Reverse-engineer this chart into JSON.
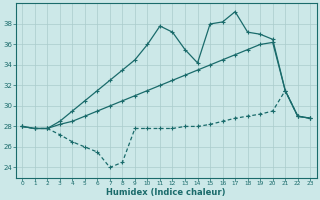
{
  "xlabel": "Humidex (Indice chaleur)",
  "x": [
    0,
    1,
    2,
    3,
    4,
    5,
    6,
    7,
    8,
    9,
    10,
    11,
    12,
    13,
    14,
    15,
    16,
    17,
    18,
    19,
    20,
    21,
    22,
    23
  ],
  "line_top": [
    28.0,
    27.8,
    27.8,
    28.5,
    29.5,
    30.5,
    31.5,
    32.5,
    33.5,
    34.5,
    36.0,
    37.8,
    37.2,
    35.5,
    34.2,
    38.0,
    38.2,
    39.2,
    37.2,
    37.0,
    36.5,
    31.5,
    29.0,
    28.8
  ],
  "line_mid": [
    28.0,
    27.8,
    27.8,
    28.2,
    28.5,
    29.0,
    29.5,
    30.0,
    30.5,
    31.0,
    31.5,
    32.0,
    32.5,
    33.0,
    33.5,
    34.0,
    34.5,
    35.0,
    35.5,
    36.0,
    36.2,
    31.5,
    29.0,
    28.8
  ],
  "line_bot": [
    28.0,
    27.8,
    27.8,
    27.2,
    26.5,
    26.0,
    25.5,
    24.0,
    24.5,
    27.8,
    27.8,
    27.8,
    27.8,
    28.0,
    28.0,
    28.2,
    28.5,
    28.8,
    29.0,
    29.2,
    29.5,
    31.5,
    29.0,
    28.8
  ],
  "ylim": [
    23.0,
    40.0
  ],
  "yticks": [
    24,
    26,
    28,
    30,
    32,
    34,
    36,
    38
  ],
  "xlim": [
    -0.5,
    23.5
  ],
  "background_color": "#cce8e8",
  "line_color": "#1a6b6b",
  "grid_color": "#aacccc",
  "grid_major_color": "#b8d8d8"
}
